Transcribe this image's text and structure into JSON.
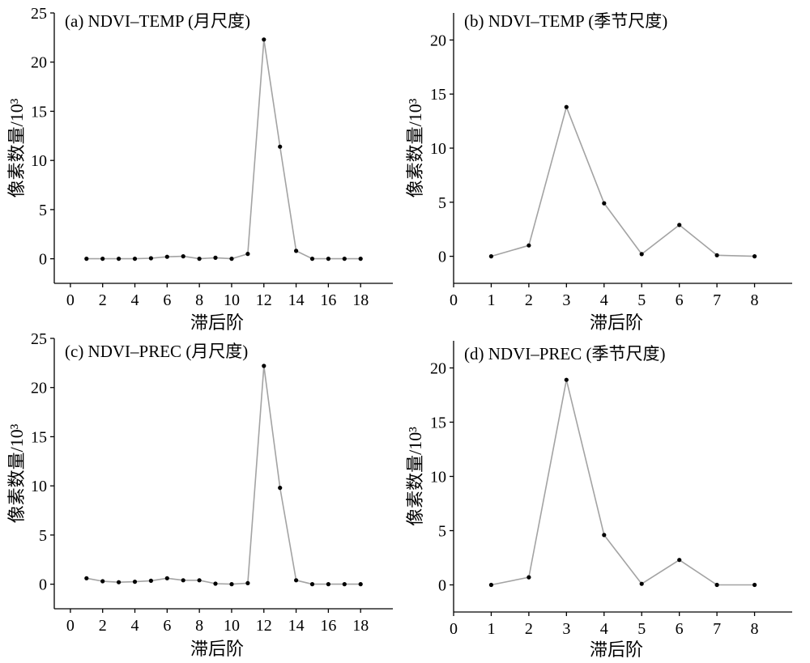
{
  "colors": {
    "line": "#a3a3a3",
    "marker": "#000000",
    "axis": "#000000"
  },
  "chart_data": [
    {
      "type": "line",
      "title": "(a) NDVI–TEMP (月尺度)",
      "xlabel": "滞后阶",
      "ylabel": "像素数量/10³",
      "xlim": [
        -1,
        20
      ],
      "ylim": [
        -2.5,
        25
      ],
      "xticks": [
        0,
        2,
        4,
        6,
        8,
        10,
        12,
        14,
        16,
        18
      ],
      "yticks": [
        0,
        5,
        10,
        15,
        20,
        25
      ],
      "grid": false,
      "x": [
        1,
        2,
        3,
        4,
        5,
        6,
        7,
        8,
        9,
        10,
        11,
        12,
        13,
        14,
        15,
        16,
        17,
        18
      ],
      "y": [
        0,
        0,
        0,
        0,
        0.05,
        0.2,
        0.25,
        0,
        0.1,
        0,
        0.5,
        22.3,
        11.4,
        0.8,
        0,
        0,
        0,
        0
      ]
    },
    {
      "type": "line",
      "title": "(b) NDVI–TEMP (季节尺度)",
      "xlabel": "滞后阶",
      "ylabel": "像素数量/10³",
      "xlim": [
        0,
        9
      ],
      "ylim": [
        -2.5,
        22.5
      ],
      "xticks": [
        0,
        1,
        2,
        3,
        4,
        5,
        6,
        7,
        8
      ],
      "yticks": [
        0,
        5,
        10,
        15,
        20
      ],
      "grid": false,
      "x": [
        1,
        2,
        3,
        4,
        5,
        6,
        7,
        8
      ],
      "y": [
        0,
        1.0,
        13.8,
        4.9,
        0.2,
        2.9,
        0.1,
        0
      ]
    },
    {
      "type": "line",
      "title": "(c) NDVI–PREC (月尺度)",
      "xlabel": "滞后阶",
      "ylabel": "像素数量/10³",
      "xlim": [
        -1,
        20
      ],
      "ylim": [
        -2.5,
        25
      ],
      "xticks": [
        0,
        2,
        4,
        6,
        8,
        10,
        12,
        14,
        16,
        18
      ],
      "yticks": [
        0,
        5,
        10,
        15,
        20,
        25
      ],
      "grid": false,
      "x": [
        1,
        2,
        3,
        4,
        5,
        6,
        7,
        8,
        9,
        10,
        11,
        12,
        13,
        14,
        15,
        16,
        17,
        18
      ],
      "y": [
        0.6,
        0.3,
        0.2,
        0.25,
        0.35,
        0.6,
        0.4,
        0.4,
        0.05,
        0,
        0.1,
        22.2,
        9.8,
        0.4,
        0,
        0,
        0,
        0
      ]
    },
    {
      "type": "line",
      "title": "(d) NDVI–PREC (季节尺度)",
      "xlabel": "滞后阶",
      "ylabel": "像素数量/10³",
      "xlim": [
        0,
        9
      ],
      "ylim": [
        -2.5,
        22.5
      ],
      "xticks": [
        0,
        1,
        2,
        3,
        4,
        5,
        6,
        7,
        8
      ],
      "yticks": [
        0,
        5,
        10,
        15,
        20
      ],
      "grid": false,
      "x": [
        1,
        2,
        3,
        4,
        5,
        6,
        7,
        8
      ],
      "y": [
        0,
        0.7,
        18.9,
        4.6,
        0.1,
        2.3,
        0,
        0
      ]
    }
  ]
}
